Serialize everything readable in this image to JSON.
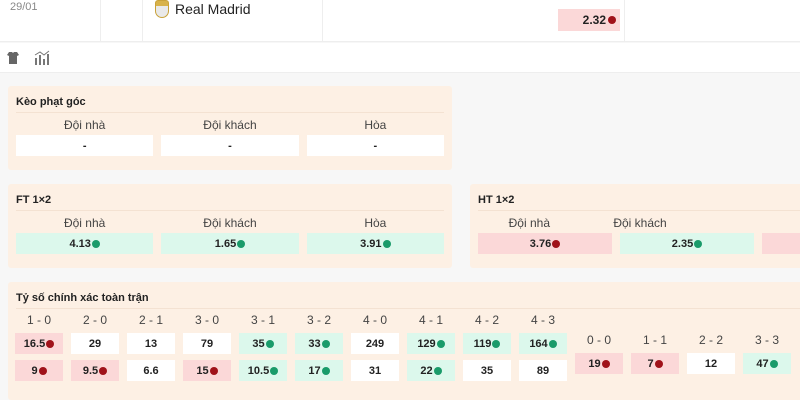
{
  "match": {
    "date": "29/01",
    "team": "Real Madrid",
    "odd": {
      "v": "2.32",
      "dir": "down"
    }
  },
  "toolbar": {
    "icons": [
      "jersey-icon",
      "stats-icon"
    ]
  },
  "corner": {
    "title": "Kèo phạt góc",
    "heads": [
      "Đội nhà",
      "Đội khách",
      "Hòa"
    ],
    "vals": [
      {
        "v": "-",
        "dir": ""
      },
      {
        "v": "-",
        "dir": ""
      },
      {
        "v": "-",
        "dir": ""
      }
    ]
  },
  "ft": {
    "title": "FT 1×2",
    "heads": [
      "Đội nhà",
      "Đội khách",
      "Hòa"
    ],
    "vals": [
      {
        "v": "4.13",
        "dir": "up"
      },
      {
        "v": "1.65",
        "dir": "up"
      },
      {
        "v": "3.91",
        "dir": "up"
      }
    ]
  },
  "ht": {
    "title": "HT 1×2",
    "heads": [
      "Đội nhà",
      "Đội khách"
    ],
    "vals": [
      {
        "v": "3.76",
        "dir": "down"
      },
      {
        "v": "2.35",
        "dir": "up"
      }
    ]
  },
  "exact": {
    "title": "Tỷ số chính xác toàn trận",
    "cols": [
      {
        "h": "1 - 0",
        "a": {
          "v": "16.5",
          "dir": "down"
        },
        "b": {
          "v": "9",
          "dir": "down"
        }
      },
      {
        "h": "2 - 0",
        "a": {
          "v": "29",
          "dir": ""
        },
        "b": {
          "v": "9.5",
          "dir": "down"
        }
      },
      {
        "h": "2 - 1",
        "a": {
          "v": "13",
          "dir": ""
        },
        "b": {
          "v": "6.6",
          "dir": ""
        }
      },
      {
        "h": "3 - 0",
        "a": {
          "v": "79",
          "dir": ""
        },
        "b": {
          "v": "15",
          "dir": "down"
        }
      },
      {
        "h": "3 - 1",
        "a": {
          "v": "35",
          "dir": "up"
        },
        "b": {
          "v": "10.5",
          "dir": "up"
        }
      },
      {
        "h": "3 - 2",
        "a": {
          "v": "33",
          "dir": "up"
        },
        "b": {
          "v": "17",
          "dir": "up"
        }
      },
      {
        "h": "4 - 0",
        "a": {
          "v": "249",
          "dir": ""
        },
        "b": {
          "v": "31",
          "dir": ""
        }
      },
      {
        "h": "4 - 1",
        "a": {
          "v": "129",
          "dir": "up"
        },
        "b": {
          "v": "22",
          "dir": "up"
        }
      },
      {
        "h": "4 - 2",
        "a": {
          "v": "119",
          "dir": "up"
        },
        "b": {
          "v": "35",
          "dir": ""
        }
      },
      {
        "h": "4 - 3",
        "a": {
          "v": "164",
          "dir": "up"
        },
        "b": {
          "v": "89",
          "dir": ""
        }
      }
    ],
    "draws": [
      {
        "h": "0 - 0",
        "a": {
          "v": "19",
          "dir": "down"
        }
      },
      {
        "h": "1 - 1",
        "a": {
          "v": "7",
          "dir": "down"
        }
      },
      {
        "h": "2 - 2",
        "a": {
          "v": "12",
          "dir": ""
        }
      },
      {
        "h": "3 - 3",
        "a": {
          "v": "47",
          "dir": "up"
        }
      }
    ]
  }
}
